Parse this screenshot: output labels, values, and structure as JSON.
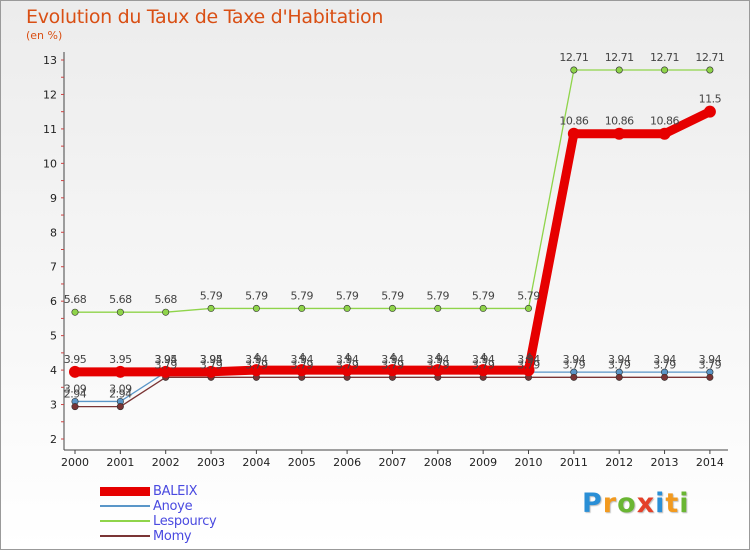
{
  "header": {
    "title": "Evolution du Taux de Taxe d'Habitation",
    "subtitle": "(en %)"
  },
  "logo": {
    "letters": [
      "P",
      "r",
      "o",
      "x",
      "i",
      "t",
      "i"
    ],
    "colors": [
      "#2a8fd6",
      "#f29a1f",
      "#6ab633",
      "#e4412a",
      "#2a8fd6",
      "#f29a1f",
      "#6ab633"
    ]
  },
  "chart_data": {
    "type": "line",
    "title": "Evolution du Taux de Taxe d'Habitation",
    "subtitle": "(en %)",
    "xlabel": "",
    "ylabel": "",
    "ylim": [
      2,
      13
    ],
    "yticks": [
      2,
      3,
      4,
      5,
      6,
      7,
      8,
      9,
      10,
      11,
      12,
      13
    ],
    "grid": false,
    "legend_position": "bottom-left",
    "categories": [
      "2000",
      "2001",
      "2002",
      "2003",
      "2004",
      "2005",
      "2006",
      "2007",
      "2008",
      "2009",
      "2010",
      "2011",
      "2012",
      "2013",
      "2014"
    ],
    "series": [
      {
        "name": "BALEIX",
        "color": "#e60000",
        "values": [
          3.95,
          3.95,
          3.95,
          3.95,
          4,
          4,
          4,
          4,
          4,
          4,
          4,
          10.86,
          10.86,
          10.86,
          11.5
        ],
        "labels": [
          "3.95",
          "3.95",
          "3.95",
          "3.95",
          "4",
          "4",
          "4",
          "4",
          "4",
          "4",
          "4",
          "10.86",
          "10.86",
          "10.86",
          "11.5"
        ]
      },
      {
        "name": "Anoye",
        "color": "#5a96c8",
        "values": [
          3.09,
          3.09,
          3.94,
          3.94,
          3.94,
          3.94,
          3.94,
          3.94,
          3.94,
          3.94,
          3.94,
          3.94,
          3.94,
          3.94,
          3.94
        ],
        "labels": [
          "3.09",
          "3.09",
          "3.94",
          "3.94",
          "3.94",
          "3.94",
          "3.94",
          "3.94",
          "3.94",
          "3.94",
          "3.94",
          "3.94",
          "3.94",
          "3.94",
          "3.94"
        ]
      },
      {
        "name": "Lespourcy",
        "color": "#8fd44a",
        "values": [
          5.68,
          5.68,
          5.68,
          5.79,
          5.79,
          5.79,
          5.79,
          5.79,
          5.79,
          5.79,
          5.79,
          12.71,
          12.71,
          12.71,
          12.71
        ],
        "labels": [
          "5.68",
          "5.68",
          "5.68",
          "5.79",
          "5.79",
          "5.79",
          "5.79",
          "5.79",
          "5.79",
          "5.79",
          "5.79",
          "12.71",
          "12.71",
          "12.71",
          "12.71"
        ]
      },
      {
        "name": "Momy",
        "color": "#7a3434",
        "values": [
          2.94,
          2.94,
          3.79,
          3.79,
          3.79,
          3.79,
          3.79,
          3.79,
          3.79,
          3.79,
          3.79,
          3.79,
          3.79,
          3.79,
          3.79
        ],
        "labels": [
          "2.94",
          "2.94",
          "3.79",
          "3.79",
          "3.79",
          "3.79",
          "3.79",
          "3.79",
          "3.79",
          "3.79",
          "3.79",
          "3.79",
          "3.79",
          "3.79",
          "3.79"
        ]
      }
    ]
  }
}
